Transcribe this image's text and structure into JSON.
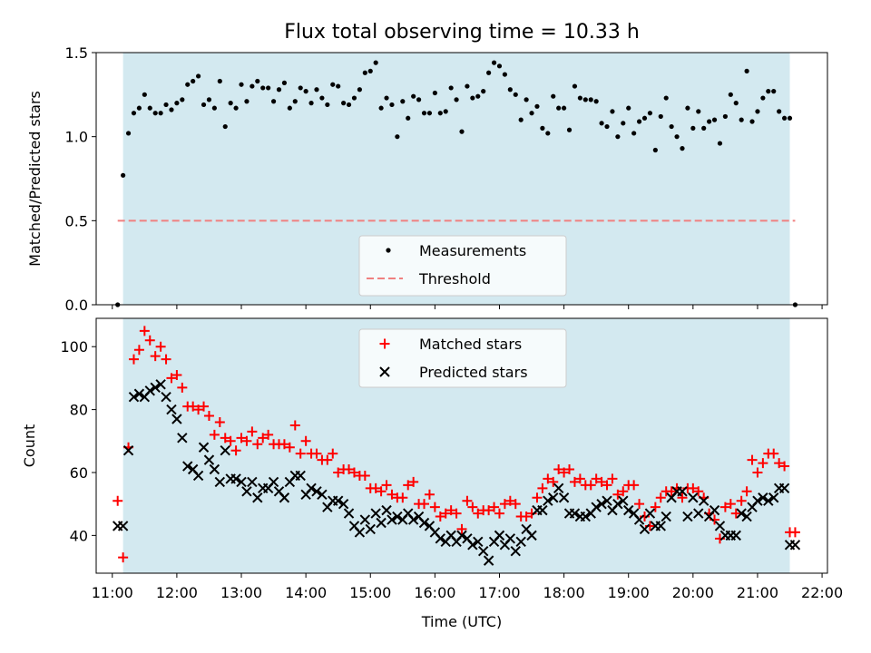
{
  "chart_data": [
    {
      "type": "scatter",
      "title": "Flux total observing time = 10.33 h",
      "ylabel": "Matched/Predicted stars",
      "xlabel": "",
      "xlim": [
        "10:45",
        "22:05"
      ],
      "ylim": [
        0,
        1.5
      ],
      "y_ticks": [
        "0.0",
        "0.5",
        "1.0",
        "1.5"
      ],
      "shaded_interval": [
        "11:10",
        "21:30"
      ],
      "threshold": 0.5,
      "legend": {
        "placement": "lower-center",
        "entries": [
          "Measurements",
          "Threshold"
        ]
      },
      "series": [
        {
          "name": "Measurements",
          "x": [
            "11:05",
            "11:10",
            "11:15",
            "11:20",
            "11:25",
            "11:30",
            "11:35",
            "11:40",
            "11:45",
            "11:50",
            "11:55",
            "12:00",
            "12:05",
            "12:10",
            "12:15",
            "12:20",
            "12:25",
            "12:30",
            "12:35",
            "12:40",
            "12:45",
            "12:50",
            "12:55",
            "13:00",
            "13:05",
            "13:10",
            "13:15",
            "13:20",
            "13:25",
            "13:30",
            "13:35",
            "13:40",
            "13:45",
            "13:50",
            "13:55",
            "14:00",
            "14:05",
            "14:10",
            "14:15",
            "14:20",
            "14:25",
            "14:30",
            "14:35",
            "14:40",
            "14:45",
            "14:50",
            "14:55",
            "15:00",
            "15:05",
            "15:10",
            "15:15",
            "15:20",
            "15:25",
            "15:30",
            "15:35",
            "15:40",
            "15:45",
            "15:50",
            "15:55",
            "16:00",
            "16:05",
            "16:10",
            "16:15",
            "16:20",
            "16:25",
            "16:30",
            "16:35",
            "16:40",
            "16:45",
            "16:50",
            "16:55",
            "17:00",
            "17:05",
            "17:10",
            "17:15",
            "17:20",
            "17:25",
            "17:30",
            "17:35",
            "17:40",
            "17:45",
            "17:50",
            "17:55",
            "18:00",
            "18:05",
            "18:10",
            "18:15",
            "18:20",
            "18:25",
            "18:30",
            "18:35",
            "18:40",
            "18:45",
            "18:50",
            "18:55",
            "19:00",
            "19:05",
            "19:10",
            "19:15",
            "19:20",
            "19:25",
            "19:30",
            "19:35",
            "19:40",
            "19:45",
            "19:50",
            "19:55",
            "20:00",
            "20:05",
            "20:10",
            "20:15",
            "20:20",
            "20:25",
            "20:30",
            "20:35",
            "20:40",
            "20:45",
            "20:50",
            "20:55",
            "21:00",
            "21:05",
            "21:10",
            "21:15",
            "21:20",
            "21:25",
            "21:30",
            "21:35"
          ],
          "y": [
            0.0,
            0.77,
            1.02,
            1.14,
            1.17,
            1.25,
            1.17,
            1.14,
            1.14,
            1.19,
            1.16,
            1.2,
            1.22,
            1.31,
            1.33,
            1.36,
            1.19,
            1.22,
            1.17,
            1.33,
            1.06,
            1.2,
            1.17,
            1.31,
            1.21,
            1.3,
            1.33,
            1.29,
            1.29,
            1.21,
            1.28,
            1.32,
            1.17,
            1.21,
            1.29,
            1.27,
            1.2,
            1.28,
            1.23,
            1.19,
            1.31,
            1.3,
            1.2,
            1.19,
            1.23,
            1.28,
            1.38,
            1.39,
            1.44,
            1.17,
            1.23,
            1.19,
            1.0,
            1.21,
            1.11,
            1.24,
            1.22,
            1.14,
            1.14,
            1.26,
            1.14,
            1.15,
            1.29,
            1.22,
            1.03,
            1.3,
            1.23,
            1.24,
            1.27,
            1.38,
            1.44,
            1.42,
            1.37,
            1.28,
            1.25,
            1.1,
            1.22,
            1.14,
            1.18,
            1.05,
            1.02,
            1.24,
            1.17,
            1.17,
            1.04,
            1.3,
            1.23,
            1.22,
            1.22,
            1.21,
            1.08,
            1.06,
            1.15,
            1.0,
            1.08,
            1.17,
            1.02,
            1.09,
            1.11,
            1.14,
            0.92,
            1.12,
            1.23,
            1.06,
            1.0,
            0.93,
            1.17,
            1.05,
            1.15,
            1.05,
            1.09,
            1.1,
            0.96,
            1.12,
            1.25,
            1.2,
            1.1,
            1.39,
            1.09,
            1.15,
            1.23,
            1.27,
            1.27,
            1.15,
            1.11,
            1.11,
            0.0
          ]
        },
        {
          "name": "Threshold",
          "x": [
            "11:05",
            "21:35"
          ],
          "y": [
            0.5,
            0.5
          ]
        }
      ]
    },
    {
      "type": "scatter",
      "title": "",
      "ylabel": "Count",
      "xlabel": "Time (UTC)",
      "xlim": [
        "10:45",
        "22:05"
      ],
      "ylim": [
        28,
        109
      ],
      "y_ticks": [
        "40",
        "60",
        "80",
        "100"
      ],
      "x_ticks": [
        "11:00",
        "12:00",
        "13:00",
        "14:00",
        "15:00",
        "16:00",
        "17:00",
        "18:00",
        "19:00",
        "20:00",
        "21:00",
        "22:00"
      ],
      "shaded_interval": [
        "11:10",
        "21:30"
      ],
      "legend": {
        "placement": "top-center",
        "entries": [
          "Matched stars",
          "Predicted stars"
        ]
      },
      "series": [
        {
          "name": "Matched stars",
          "x": [
            "11:05",
            "11:10",
            "11:15",
            "11:20",
            "11:25",
            "11:30",
            "11:35",
            "11:40",
            "11:45",
            "11:50",
            "11:55",
            "12:00",
            "12:05",
            "12:10",
            "12:15",
            "12:20",
            "12:25",
            "12:30",
            "12:35",
            "12:40",
            "12:45",
            "12:50",
            "12:55",
            "13:00",
            "13:05",
            "13:10",
            "13:15",
            "13:20",
            "13:25",
            "13:30",
            "13:35",
            "13:40",
            "13:45",
            "13:50",
            "13:55",
            "14:00",
            "14:05",
            "14:10",
            "14:15",
            "14:20",
            "14:25",
            "14:30",
            "14:35",
            "14:40",
            "14:45",
            "14:50",
            "14:55",
            "15:00",
            "15:05",
            "15:10",
            "15:15",
            "15:20",
            "15:25",
            "15:30",
            "15:35",
            "15:40",
            "15:45",
            "15:50",
            "15:55",
            "16:00",
            "16:05",
            "16:10",
            "16:15",
            "16:20",
            "16:25",
            "16:30",
            "16:35",
            "16:40",
            "16:45",
            "16:50",
            "16:55",
            "17:00",
            "17:05",
            "17:10",
            "17:15",
            "17:20",
            "17:25",
            "17:30",
            "17:35",
            "17:40",
            "17:45",
            "17:50",
            "17:55",
            "18:00",
            "18:05",
            "18:10",
            "18:15",
            "18:20",
            "18:25",
            "18:30",
            "18:35",
            "18:40",
            "18:45",
            "18:50",
            "18:55",
            "19:00",
            "19:05",
            "19:10",
            "19:15",
            "19:20",
            "19:25",
            "19:30",
            "19:35",
            "19:40",
            "19:45",
            "19:50",
            "19:55",
            "20:00",
            "20:05",
            "20:10",
            "20:15",
            "20:20",
            "20:25",
            "20:30",
            "20:35",
            "20:40",
            "20:45",
            "20:50",
            "20:55",
            "21:00",
            "21:05",
            "21:10",
            "21:15",
            "21:20",
            "21:25",
            "21:30",
            "21:35"
          ],
          "y": [
            51,
            33,
            68,
            96,
            99,
            105,
            102,
            97,
            100,
            96,
            90,
            91,
            87,
            81,
            81,
            80,
            81,
            78,
            72,
            76,
            71,
            70,
            67,
            71,
            70,
            73,
            69,
            71,
            72,
            69,
            69,
            69,
            68,
            75,
            66,
            70,
            66,
            66,
            64,
            64,
            66,
            60,
            61,
            61,
            60,
            59,
            59,
            55,
            55,
            54,
            56,
            53,
            52,
            52,
            56,
            57,
            50,
            50,
            53,
            49,
            46,
            47,
            48,
            47,
            42,
            51,
            49,
            47,
            48,
            48,
            49,
            47,
            50,
            51,
            50,
            46,
            46,
            47,
            52,
            55,
            58,
            57,
            61,
            60,
            61,
            57,
            58,
            56,
            56,
            58,
            57,
            56,
            58,
            53,
            54,
            56,
            56,
            50,
            46,
            43,
            49,
            52,
            54,
            54,
            55,
            52,
            55,
            55,
            54,
            52,
            47,
            45,
            39,
            49,
            50,
            47,
            51,
            54,
            64,
            60,
            63,
            66,
            66,
            63,
            62,
            41,
            41
          ]
        },
        {
          "name": "Predicted stars",
          "x": [
            "11:05",
            "11:10",
            "11:15",
            "11:20",
            "11:25",
            "11:30",
            "11:35",
            "11:40",
            "11:45",
            "11:50",
            "11:55",
            "12:00",
            "12:05",
            "12:10",
            "12:15",
            "12:20",
            "12:25",
            "12:30",
            "12:35",
            "12:40",
            "12:45",
            "12:50",
            "12:55",
            "13:00",
            "13:05",
            "13:10",
            "13:15",
            "13:20",
            "13:25",
            "13:30",
            "13:35",
            "13:40",
            "13:45",
            "13:50",
            "13:55",
            "14:00",
            "14:05",
            "14:10",
            "14:15",
            "14:20",
            "14:25",
            "14:30",
            "14:35",
            "14:40",
            "14:45",
            "14:50",
            "14:55",
            "15:00",
            "15:05",
            "15:10",
            "15:15",
            "15:20",
            "15:25",
            "15:30",
            "15:35",
            "15:40",
            "15:45",
            "15:50",
            "15:55",
            "16:00",
            "16:05",
            "16:10",
            "16:15",
            "16:20",
            "16:25",
            "16:30",
            "16:35",
            "16:40",
            "16:45",
            "16:50",
            "16:55",
            "17:00",
            "17:05",
            "17:10",
            "17:15",
            "17:20",
            "17:25",
            "17:30",
            "17:35",
            "17:40",
            "17:45",
            "17:50",
            "17:55",
            "18:00",
            "18:05",
            "18:10",
            "18:15",
            "18:20",
            "18:25",
            "18:30",
            "18:35",
            "18:40",
            "18:45",
            "18:50",
            "18:55",
            "19:00",
            "19:05",
            "19:10",
            "19:15",
            "19:20",
            "19:25",
            "19:30",
            "19:35",
            "19:40",
            "19:45",
            "19:50",
            "19:55",
            "20:00",
            "20:05",
            "20:10",
            "20:15",
            "20:20",
            "20:25",
            "20:30",
            "20:35",
            "20:40",
            "20:45",
            "20:50",
            "20:55",
            "21:00",
            "21:05",
            "21:10",
            "21:15",
            "21:20",
            "21:25",
            "21:30",
            "21:35"
          ],
          "y": [
            43,
            43,
            67,
            84,
            85,
            84,
            86,
            87,
            88,
            84,
            80,
            77,
            71,
            62,
            61,
            59,
            68,
            64,
            61,
            57,
            67,
            58,
            58,
            57,
            54,
            57,
            52,
            55,
            55,
            57,
            54,
            52,
            57,
            59,
            59,
            53,
            55,
            54,
            53,
            49,
            51,
            51,
            50,
            47,
            43,
            41,
            45,
            42,
            47,
            44,
            48,
            45,
            46,
            45,
            47,
            45,
            46,
            44,
            43,
            41,
            39,
            38,
            40,
            38,
            40,
            39,
            37,
            38,
            35,
            32,
            38,
            40,
            37,
            39,
            35,
            38,
            42,
            40,
            48,
            48,
            51,
            52,
            55,
            52,
            47,
            47,
            46,
            46,
            47,
            49,
            50,
            51,
            48,
            50,
            51,
            48,
            47,
            45,
            42,
            47,
            43,
            43,
            46,
            52,
            54,
            54,
            46,
            52,
            47,
            51,
            46,
            48,
            43,
            40,
            40,
            40,
            47,
            46,
            49,
            51,
            52,
            51,
            52,
            55,
            55,
            37,
            37
          ]
        }
      ]
    }
  ],
  "colors": {
    "shade": "#d3e9f0",
    "measurement": "#000000",
    "threshold": "#f08080",
    "matched": "#ff0000",
    "predicted": "#000000"
  }
}
